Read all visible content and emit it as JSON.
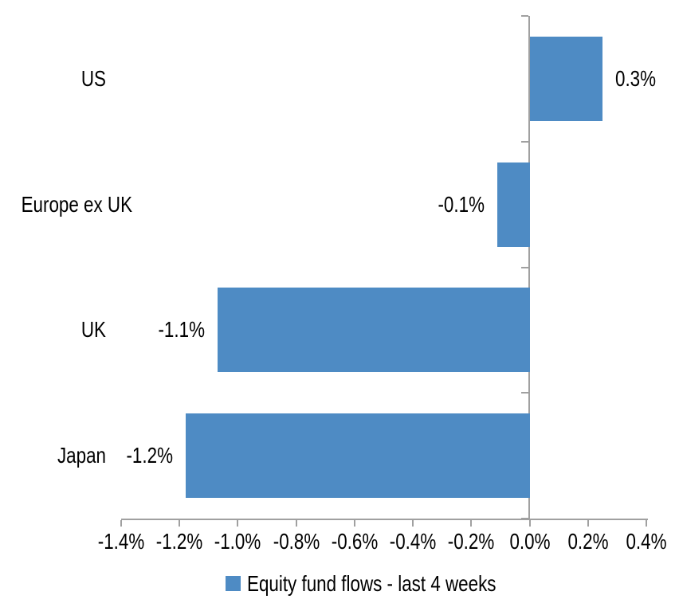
{
  "chart_data": {
    "type": "bar",
    "orientation": "horizontal",
    "title": "",
    "categories": [
      "US",
      "Europe ex UK",
      "UK",
      "Japan"
    ],
    "series": [
      {
        "name": "Equity fund flows - last 4 weeks",
        "values": [
          0.25,
          -0.11,
          -1.07,
          -1.18
        ],
        "value_labels": [
          "0.3%",
          "-0.1%",
          "-1.1%",
          "-1.2%"
        ]
      }
    ],
    "xlabel": "",
    "ylabel": "",
    "xlim": [
      -1.4,
      0.4
    ],
    "x_tick_values": [
      -1.4,
      -1.2,
      -1.0,
      -0.8,
      -0.6,
      -0.4,
      -0.2,
      0.0,
      0.2,
      0.4
    ],
    "x_tick_labels": [
      "-1.4%",
      "-1.2%",
      "-1.0%",
      "-0.8%",
      "-0.6%",
      "-0.4%",
      "-0.2%",
      "0.0%",
      "0.2%",
      "0.4%"
    ],
    "grid": false,
    "legend_position": "bottom",
    "colors": {
      "bar": "#4E8BC4",
      "axis": "#A0A0A0",
      "text": "#000000",
      "background": "#FFFFFF"
    }
  },
  "legend": {
    "label": "Equity fund flows - last 4 weeks"
  }
}
